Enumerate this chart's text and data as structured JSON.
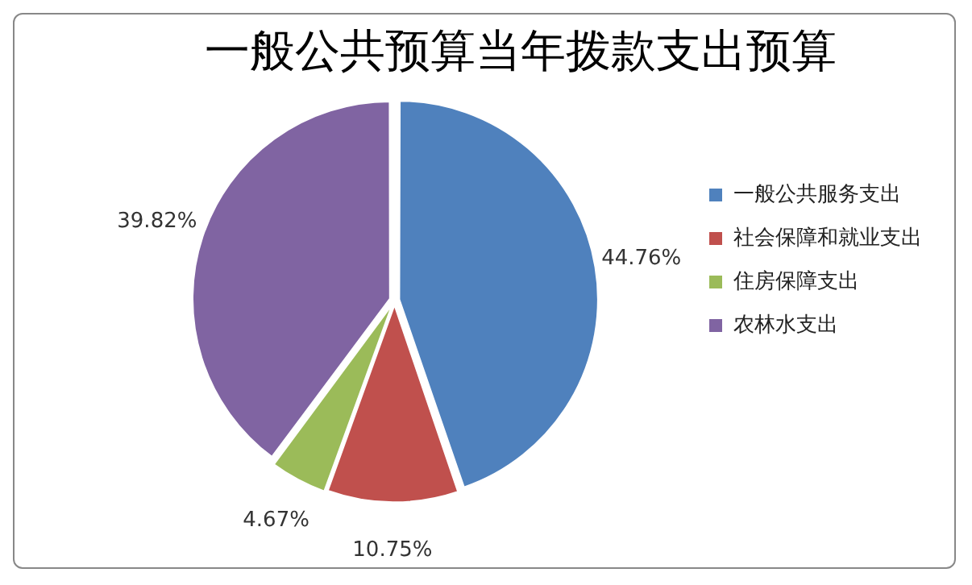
{
  "chart_data": {
    "type": "pie",
    "title": "一般公共预算当年拨款支出预算",
    "categories": [
      "一般公共服务支出",
      "社会保障和就业支出",
      "住房保障支出",
      "农林水支出"
    ],
    "values": [
      44.76,
      10.75,
      4.67,
      39.82
    ],
    "value_labels": [
      "44.76%",
      "10.75%",
      "4.67%",
      "39.82%"
    ],
    "colors": [
      "#4f81bd",
      "#c0504d",
      "#9bbb59",
      "#8064a2"
    ],
    "legend": "right"
  }
}
